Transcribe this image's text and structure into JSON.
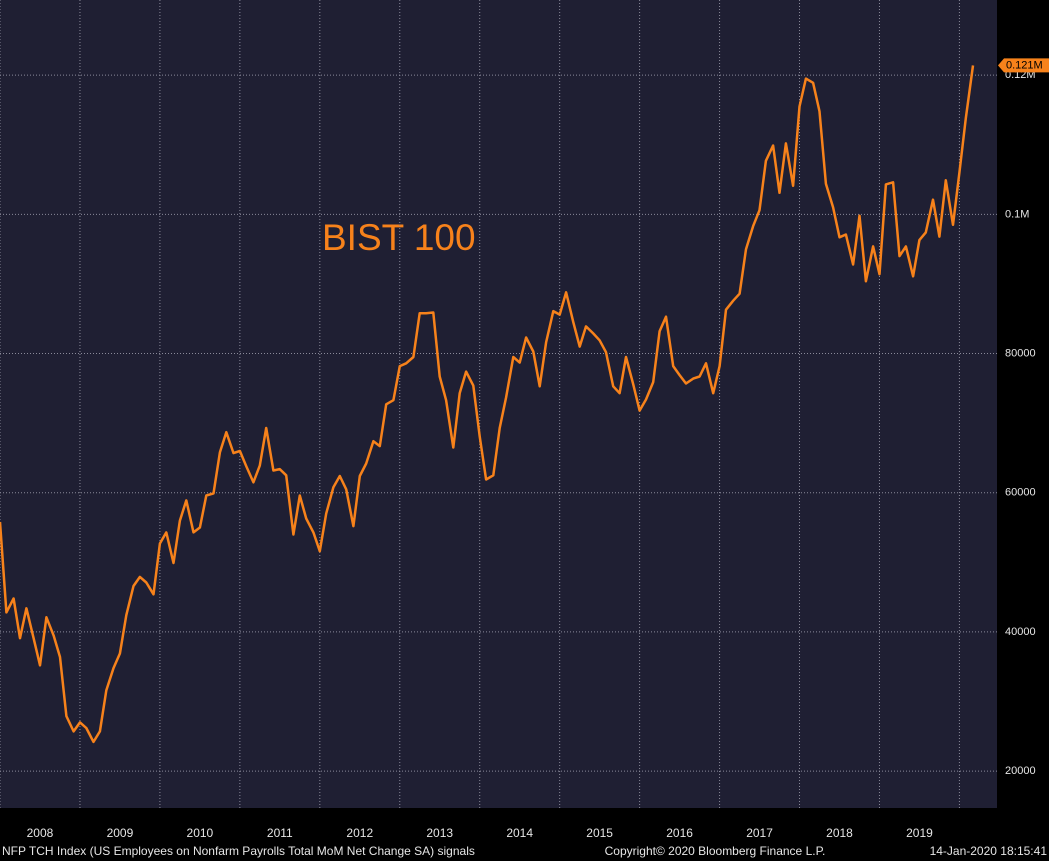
{
  "chart_data": {
    "type": "line",
    "footer_left": "NFP TCH Index (US Employees on Nonfarm Payrolls Total MoM Net Change SA) signals",
    "footer_center": "Copyright© 2020 Bloomberg Finance L.P.",
    "footer_right": "14-Jan-2020 18:15:41",
    "x": [
      2008,
      2008.08,
      2008.17,
      2008.25,
      2008.33,
      2008.42,
      2008.5,
      2008.58,
      2008.67,
      2008.75,
      2008.83,
      2008.92,
      2009,
      2009.08,
      2009.17,
      2009.25,
      2009.33,
      2009.42,
      2009.5,
      2009.58,
      2009.67,
      2009.75,
      2009.83,
      2009.92,
      2010,
      2010.08,
      2010.17,
      2010.25,
      2010.33,
      2010.42,
      2010.5,
      2010.58,
      2010.67,
      2010.75,
      2010.83,
      2010.92,
      2011,
      2011.08,
      2011.17,
      2011.25,
      2011.33,
      2011.42,
      2011.5,
      2011.58,
      2011.67,
      2011.75,
      2011.83,
      2011.92,
      2012,
      2012.08,
      2012.17,
      2012.25,
      2012.33,
      2012.42,
      2012.5,
      2012.58,
      2012.67,
      2012.75,
      2012.83,
      2012.92,
      2013,
      2013.08,
      2013.17,
      2013.25,
      2013.33,
      2013.42,
      2013.5,
      2013.58,
      2013.67,
      2013.75,
      2013.83,
      2013.92,
      2014,
      2014.08,
      2014.17,
      2014.25,
      2014.33,
      2014.42,
      2014.5,
      2014.58,
      2014.67,
      2014.75,
      2014.83,
      2014.92,
      2015,
      2015.08,
      2015.17,
      2015.25,
      2015.33,
      2015.42,
      2015.5,
      2015.58,
      2015.67,
      2015.75,
      2015.83,
      2015.92,
      2016,
      2016.08,
      2016.17,
      2016.25,
      2016.33,
      2016.42,
      2016.5,
      2016.58,
      2016.67,
      2016.75,
      2016.83,
      2016.92,
      2017,
      2017.08,
      2017.17,
      2017.25,
      2017.33,
      2017.42,
      2017.5,
      2017.58,
      2017.67,
      2017.75,
      2017.83,
      2017.92,
      2018,
      2018.08,
      2018.17,
      2018.25,
      2018.33,
      2018.42,
      2018.5,
      2018.58,
      2018.67,
      2018.75,
      2018.83,
      2018.92,
      2019,
      2019.08,
      2019.17,
      2019.25,
      2019.33,
      2019.42,
      2019.5,
      2019.58,
      2019.67,
      2019.75,
      2019.83,
      2019.92,
      2020,
      2020.08,
      2020.17
    ],
    "series": [
      {
        "name": "BIST 100",
        "color": "#f7821b",
        "values": [
          55800,
          42800,
          44800,
          39100,
          43400,
          39100,
          35200,
          42100,
          39500,
          36400,
          27900,
          25700,
          27000,
          26200,
          24200,
          25700,
          31600,
          34800,
          36900,
          42400,
          46600,
          47900,
          47100,
          45400,
          52700,
          54300,
          49900,
          56000,
          58900,
          54300,
          55000,
          59600,
          59900,
          65800,
          68700,
          65700,
          66000,
          63800,
          61500,
          63900,
          69300,
          63200,
          63400,
          62500,
          54000,
          59600,
          56300,
          54300,
          51600,
          57000,
          60800,
          62400,
          60500,
          55200,
          62400,
          64200,
          67400,
          66700,
          72700,
          73300,
          78200,
          78600,
          79500,
          85800,
          85800,
          85900,
          76700,
          73300,
          66500,
          74300,
          77400,
          75400,
          68100,
          61900,
          62500,
          69300,
          73700,
          79500,
          78700,
          82300,
          80300,
          75300,
          81600,
          86100,
          85600,
          88800,
          84500,
          81000,
          83900,
          82900,
          81900,
          80200,
          75300,
          74300,
          79500,
          75600,
          71800,
          73400,
          75900,
          83200,
          85300,
          78200,
          76900,
          75700,
          76400,
          76700,
          78600,
          74300,
          78200,
          86300,
          87600,
          88600,
          95000,
          98300,
          100600,
          107700,
          109900,
          103100,
          110200,
          104100,
          115500,
          119500,
          118900,
          114800,
          104400,
          101000,
          96700,
          97100,
          92800,
          99800,
          90400,
          95400,
          91400,
          104300,
          104600,
          94000,
          95400,
          91100,
          96300,
          97400,
          102100,
          96800,
          104900,
          98500,
          106000,
          113800,
          121400
        ],
        "value_labels": [
          null,
          null,
          null,
          null,
          null,
          null,
          null,
          null,
          null,
          null,
          null,
          null,
          null,
          null,
          null,
          null,
          null,
          null,
          null,
          null,
          null,
          null,
          null,
          null,
          null,
          null,
          null,
          null,
          null,
          null,
          null,
          null,
          null,
          null,
          null,
          null,
          null,
          null,
          null,
          null,
          null,
          null,
          null,
          null,
          null,
          null,
          null,
          null,
          null,
          null,
          null,
          null,
          null,
          null,
          null,
          null,
          null,
          null,
          null,
          null,
          null,
          null,
          null,
          null,
          null,
          null,
          null,
          null,
          null,
          null,
          null,
          null,
          null,
          null,
          null,
          null,
          null,
          null,
          null,
          null,
          null,
          null,
          null,
          null,
          null,
          null,
          null,
          null,
          null,
          null,
          null,
          null,
          null,
          null,
          null,
          null,
          null,
          null,
          null,
          null,
          null,
          null,
          null,
          null,
          null,
          null,
          null,
          null,
          null,
          null,
          null,
          null,
          null,
          null,
          null,
          null,
          null,
          null,
          null,
          null,
          null,
          null,
          null,
          null,
          null,
          null,
          null,
          null,
          null,
          null,
          null,
          null,
          null,
          null,
          null,
          null,
          null,
          null,
          null,
          null,
          null,
          null,
          null,
          null,
          null,
          null,
          "0.121M"
        ]
      }
    ],
    "xlim": [
      2008,
      2020.47
    ],
    "xticks": [
      2008,
      2009,
      2010,
      2011,
      2012,
      2013,
      2014,
      2015,
      2016,
      2017,
      2018,
      2019
    ],
    "ylim": [
      14700,
      130800
    ],
    "yticks": [
      20000,
      40000,
      60000,
      80000,
      {
        "value": 100000,
        "label": "0.1M"
      },
      {
        "value": 120000,
        "label": "0.12M"
      }
    ],
    "grid": true
  }
}
